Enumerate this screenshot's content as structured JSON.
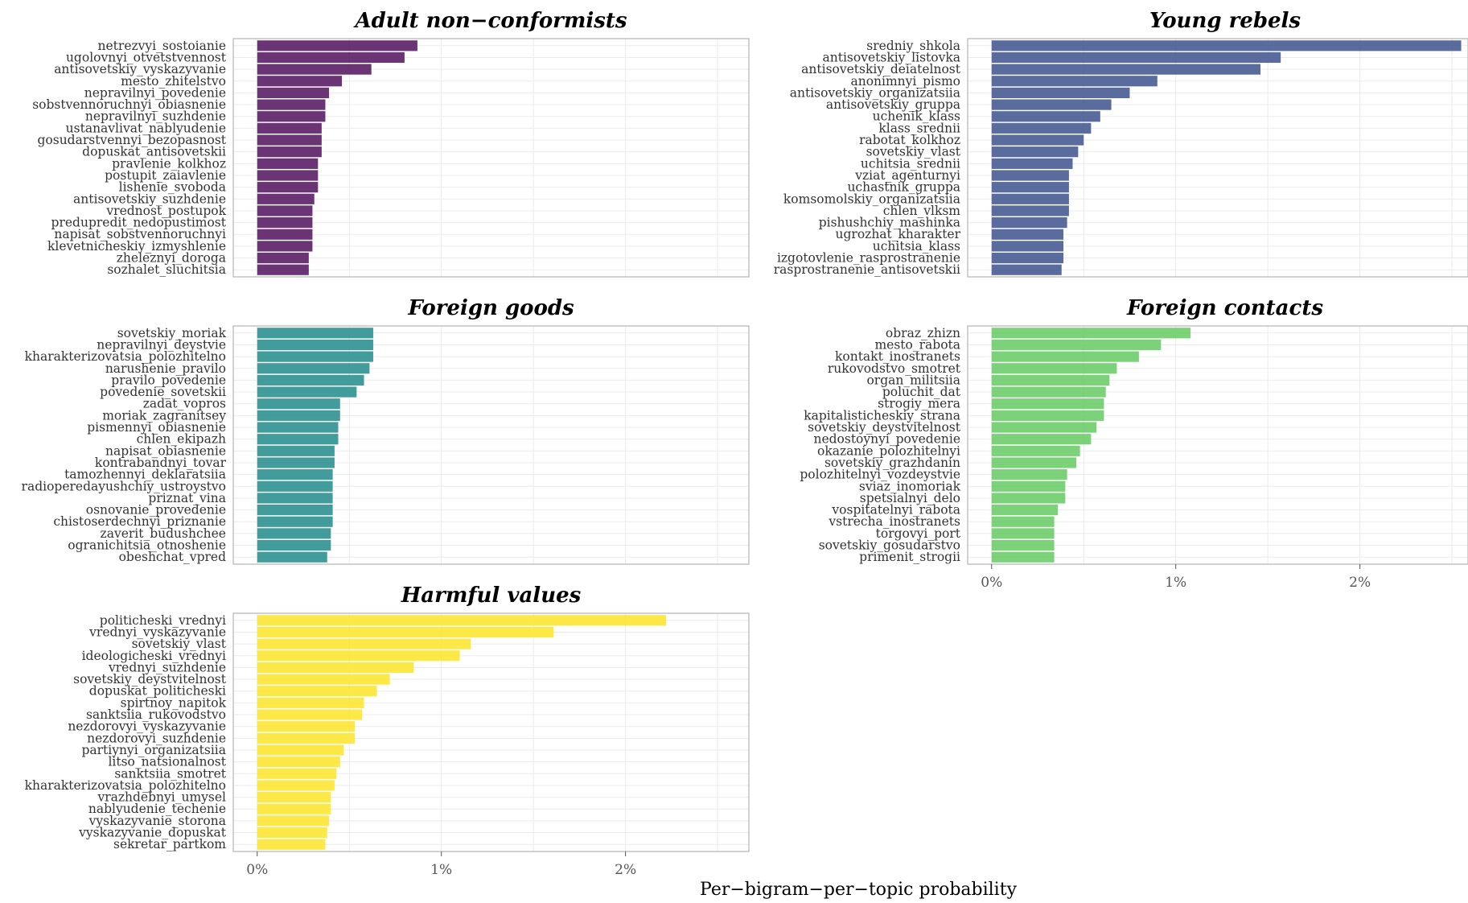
{
  "chart_data": {
    "type": "bar",
    "orientation": "horizontal",
    "facets_layout": "2 columns, 3 rows",
    "x_axis": {
      "label": "Per−bigram−per−topic probability",
      "ticks": [
        "0%",
        "1%",
        "2%"
      ],
      "tick_values": [
        0,
        0.01,
        0.02
      ],
      "range": [
        -0.0013,
        0.0267
      ]
    },
    "grid": true,
    "panels": [
      {
        "title": "Adult non−conformists",
        "color": "#5a1e66",
        "categories": [
          "netrezvyi_sostoianie",
          "ugolovnyi_otvetstvennost",
          "antisovetskiy_vyskazyvanie",
          "mesto_zhitelstvo",
          "nepravilnyi_povedenie",
          "sobstvennoruchnyi_obiasnenie",
          "nepravilnyi_suzhdenie",
          "ustanavlivat_nablyudenie",
          "gosudarstvennyi_bezopasnost",
          "dopuskat_antisovetskii",
          "pravlenie_kolkhoz",
          "postupit_zaiavlenie",
          "lishenie_svoboda",
          "antisovetskiy_suzhdenie",
          "vrednost_postupok",
          "predupredit_nedopustimost",
          "napisat_sobstvennoruchnyi",
          "klevetnicheskiy_izmyshlenie",
          "zheleznyi_doroga",
          "sozhalet_sluchitsia"
        ],
        "values": [
          0.0087,
          0.008,
          0.0062,
          0.0046,
          0.0039,
          0.0037,
          0.0037,
          0.0035,
          0.0035,
          0.0035,
          0.0033,
          0.0033,
          0.0033,
          0.0031,
          0.003,
          0.003,
          0.003,
          0.003,
          0.0028,
          0.0028
        ]
      },
      {
        "title": "Young rebels",
        "color": "#485c93",
        "categories": [
          "sredniy_shkola",
          "antisovetskiy_listovka",
          "antisovetskiy_deiatelnost",
          "anonimnyi_pismo",
          "antisovetskiy_organizatsiia",
          "antisovetskiy_gruppa",
          "uchenik_klass",
          "klass_srednii",
          "rabotat_kolkhoz",
          "sovetskiy_vlast",
          "uchitsia_srednii",
          "vziat_agenturnyi",
          "uchastnik_gruppa",
          "komsomolskiy_organizatsiia",
          "chlen_vlksm",
          "pishushchiy_mashinka",
          "ugrozhat_kharakter",
          "uchitsia_klass",
          "izgotovlenie_rasprostranenie",
          "rasprostranenie_antisovetskii"
        ],
        "values": [
          0.0255,
          0.0157,
          0.0146,
          0.009,
          0.0075,
          0.0065,
          0.0059,
          0.0054,
          0.005,
          0.0047,
          0.0044,
          0.0042,
          0.0042,
          0.0042,
          0.0042,
          0.0041,
          0.0039,
          0.0039,
          0.0039,
          0.0038
        ]
      },
      {
        "title": "Foreign goods",
        "color": "#2f9191",
        "categories": [
          "sovetskiy_moriak",
          "nepravilnyi_deystvie",
          "kharakterizovatsia_polozhitelno",
          "narushenie_pravilo",
          "pravilo_povedenie",
          "povedenie_sovetskii",
          "zadat_vopros",
          "moriak_zagranitsey",
          "pismennyi_obiasnenie",
          "chlen_ekipazh",
          "napisat_obiasnenie",
          "kontrabandnyi_tovar",
          "tamozhennyi_deklaratsiia",
          "radioperedayushchiy_ustroystvo",
          "priznat_vina",
          "osnovanie_provedenie",
          "chistoserdechnyi_priznanie",
          "zaverit_budushchee",
          "ogranichitsia_otnoshenie",
          "obeshchat_vpred"
        ],
        "values": [
          0.0063,
          0.0063,
          0.0063,
          0.0061,
          0.0058,
          0.0054,
          0.0045,
          0.0045,
          0.0044,
          0.0044,
          0.0042,
          0.0042,
          0.0041,
          0.0041,
          0.0041,
          0.0041,
          0.0041,
          0.004,
          0.004,
          0.0038
        ]
      },
      {
        "title": "Foreign contacts",
        "color": "#6dcd6a",
        "categories": [
          "obraz_zhizn",
          "mesto_rabota",
          "kontakt_inostranets",
          "rukovodstvo_smotret",
          "organ_militsiia",
          "poluchit_dat",
          "strogiy_mera",
          "kapitalisticheskiy_strana",
          "sovetskiy_deystvitelnost",
          "nedostoynyi_povedenie",
          "okazanie_polozhitelnyi",
          "sovetskiy_grazhdanin",
          "polozhitelnyi_vozdeystvie",
          "sviaz_inomoriak",
          "spetsialnyi_delo",
          "vospitatelnyi_rabota",
          "vstrecha_inostranets",
          "torgovyi_port",
          "sovetskiy_gosudarstvo",
          "primenit_strogii"
        ],
        "values": [
          0.0108,
          0.0092,
          0.008,
          0.0068,
          0.0064,
          0.0062,
          0.0061,
          0.0061,
          0.0057,
          0.0054,
          0.0048,
          0.0046,
          0.0041,
          0.004,
          0.004,
          0.0036,
          0.0034,
          0.0034,
          0.0034,
          0.0034
        ]
      },
      {
        "title": "Harmful values",
        "color": "#fce533",
        "categories": [
          "politicheski_vrednyi",
          "vrednyi_vyskazyvanie",
          "sovetskiy_vlast",
          "ideologicheski_vrednyi",
          "vrednyi_suzhdenie",
          "sovetskiy_deystvitelnost",
          "dopuskat_politicheski",
          "spirtnoy_napitok",
          "sanktsiia_rukovodstvo",
          "nezdorovyi_vyskazyvanie",
          "nezdorovyi_suzhdenie",
          "partiynyi_organizatsiia",
          "litso_natsionalnost",
          "sanktsiia_smotret",
          "kharakterizovatsia_polozhitelno",
          "vrazhdebnyi_umysel",
          "nablyudenie_techenie",
          "vyskazyvanie_storona",
          "vyskazyvanie_dopuskat",
          "sekretar_partkom"
        ],
        "values": [
          0.0222,
          0.0161,
          0.0116,
          0.011,
          0.0085,
          0.0072,
          0.0065,
          0.0058,
          0.0057,
          0.0053,
          0.0053,
          0.0047,
          0.0045,
          0.0043,
          0.0042,
          0.004,
          0.004,
          0.0039,
          0.0038,
          0.0037
        ]
      }
    ]
  }
}
